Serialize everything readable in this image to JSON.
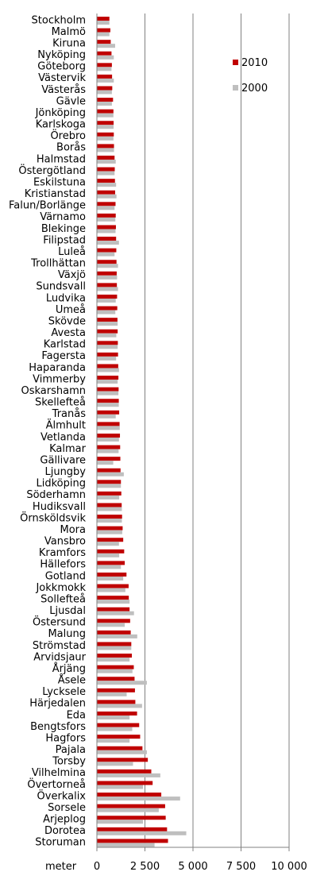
{
  "chart_data": {
    "type": "bar",
    "orientation": "horizontal",
    "xlabel": "meter",
    "xlim": [
      0,
      10000
    ],
    "xticks": [
      0,
      2500,
      5000,
      7500,
      10000
    ],
    "xtick_labels": [
      "0",
      "2 500",
      "5 000",
      "7 500",
      "10 000"
    ],
    "grid": true,
    "legend_position": "top-right",
    "categories": [
      "Stockholm",
      "Malmö",
      "Kiruna",
      "Nyköping",
      "Göteborg",
      "Västervik",
      "Västerås",
      "Gävle",
      "Jönköping",
      "Karlskoga",
      "Örebro",
      "Borås",
      "Halmstad",
      "Östergötland",
      "Eskilstuna",
      "Kristianstad",
      "Falun/Borlänge",
      "Värnamo",
      "Blekinge",
      "Filipstad",
      "Luleå",
      "Trollhättan",
      "Växjö",
      "Sundsvall",
      "Ludvika",
      "Umeå",
      "Skövde",
      "Avesta",
      "Karlstad",
      "Fagersta",
      "Haparanda",
      "Vimmerby",
      "Oskarshamn",
      "Skellefteå",
      "Tranås",
      "Älmhult",
      "Vetlanda",
      "Kalmar",
      "Gällivare",
      "Ljungby",
      "Lidköping",
      "Söderhamn",
      "Hudiksvall",
      "Örnsköldsvik",
      "Mora",
      "Vansbro",
      "Kramfors",
      "Hällefors",
      "Gotland",
      "Jokkmokk",
      "Sollefteå",
      "Ljusdal",
      "Östersund",
      "Malung",
      "Strömstad",
      "Arvidsjaur",
      "Årjäng",
      "Åsele",
      "Lycksele",
      "Härjedalen",
      "Eda",
      "Bengtsfors",
      "Hagfors",
      "Pajala",
      "Torsby",
      "Vilhelmina",
      "Övertorneå",
      "Överkalix",
      "Sorsele",
      "Arjeplog",
      "Dorotea",
      "Storuman"
    ],
    "series": [
      {
        "name": "2010",
        "color": "#c00000",
        "values": [
          650,
          700,
          720,
          760,
          780,
          790,
          800,
          840,
          860,
          870,
          880,
          890,
          920,
          930,
          940,
          950,
          970,
          980,
          990,
          1000,
          1010,
          1020,
          1030,
          1040,
          1050,
          1060,
          1070,
          1080,
          1090,
          1100,
          1110,
          1120,
          1130,
          1140,
          1160,
          1180,
          1200,
          1210,
          1220,
          1230,
          1250,
          1270,
          1290,
          1310,
          1340,
          1370,
          1420,
          1450,
          1540,
          1650,
          1660,
          1700,
          1730,
          1760,
          1790,
          1820,
          1920,
          1960,
          1980,
          2000,
          2090,
          2200,
          2250,
          2370,
          2650,
          2830,
          2900,
          3350,
          3550,
          3580,
          3650,
          3700
        ]
      },
      {
        "name": "2000",
        "color": "#bfbfbf",
        "values": [
          650,
          650,
          950,
          880,
          760,
          880,
          780,
          780,
          860,
          870,
          860,
          890,
          980,
          920,
          1000,
          1020,
          920,
          960,
          970,
          1150,
          920,
          1100,
          1050,
          1100,
          980,
          960,
          1080,
          1010,
          1080,
          1000,
          1150,
          1080,
          1120,
          1140,
          980,
          1190,
          1150,
          1130,
          850,
          1400,
          1250,
          1160,
          1300,
          1300,
          1320,
          1150,
          1160,
          1250,
          1370,
          1480,
          1700,
          1930,
          1450,
          2100,
          1790,
          1700,
          1850,
          2600,
          1550,
          2350,
          1700,
          1840,
          1700,
          2600,
          1880,
          3300,
          2400,
          4330,
          3220,
          2400,
          4650,
          3000
        ]
      }
    ]
  },
  "legend": [
    {
      "label": "2010",
      "color": "#c00000"
    },
    {
      "label": "2000",
      "color": "#bfbfbf"
    }
  ]
}
